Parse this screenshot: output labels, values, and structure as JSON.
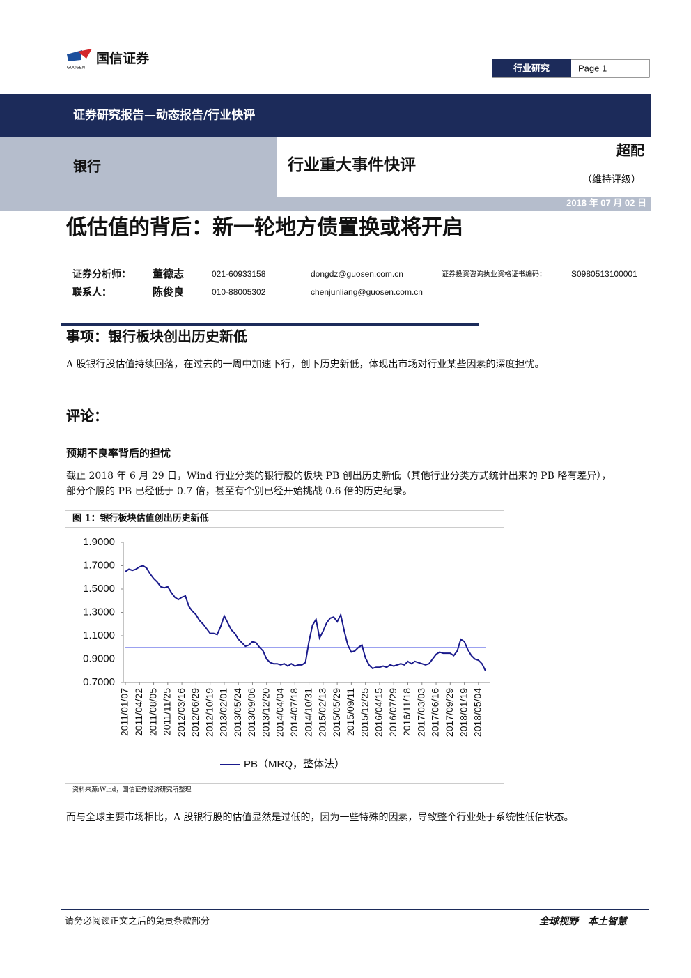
{
  "header": {
    "logo_text": "国信证券",
    "logo_sub": "GUOSEN",
    "section": "行业研究",
    "page": "Page 1"
  },
  "banner": "证券研究报告—动态报告/行业快评",
  "industry": "银行",
  "report_type": "行业重大事件快评",
  "rating": "超配",
  "rating_note": "（维持评级）",
  "date": "2018 年 07 月 02 日",
  "title": "低估值的背后：新一轮地方债置换或将开启",
  "analysts": [
    {
      "role": "证券分析师：",
      "name": "董德志",
      "phone": "021-60933158",
      "email": "dongdz@guosen.com.cn",
      "cert_label": "证券投资咨询执业资格证书编码：",
      "cert": "S0980513100001"
    },
    {
      "role": "联系人：",
      "name": "陈俊良",
      "phone": "010-88005302",
      "email": "chenjunliang@guosen.com.cn"
    }
  ],
  "event": {
    "heading": "事项：银行板块创出历史新低",
    "text": "A 股银行股估值持续回落，在过去的一周中加速下行，创下历史新低，体现出市场对行业某些因素的深度担忧。"
  },
  "comment": {
    "heading": "评论：",
    "subheading": "预期不良率背后的担忧",
    "lines": [
      "截止 2018 年 6 月 29 日，Wind 行业分类的银行股的板块 PB 创出历史新低（其他行业分类方式统计出来的 PB 略有差异），",
      "部分个股的 PB 已经低于 0.7 倍，甚至有个别已经开始挑战 0.6 倍的历史纪录。"
    ],
    "after": "而与全球主要市场相比，A 股银行股的估值显然是过低的，因为一些特殊的因素，导致整个行业处于系统性低估状态。"
  },
  "footer": {
    "left": "请务必阅读正文之后的免责条款部分",
    "right": "全球视野　本土智慧"
  },
  "chart_data": {
    "type": "line",
    "title": "图 1：银行板块估值创出历史新低",
    "source": "资料来源:Wind，国信证券经济研究所整理",
    "categories": [
      "2011/01/07",
      null,
      null,
      null,
      "2011/04/22",
      null,
      null,
      null,
      "2011/08/05",
      null,
      null,
      null,
      "2011/11/25",
      null,
      null,
      null,
      "2012/03/16",
      null,
      null,
      null,
      "2012/06/29",
      null,
      null,
      null,
      "2012/10/19",
      null,
      null,
      null,
      "2013/02/01",
      null,
      null,
      null,
      "2013/05/24",
      null,
      null,
      null,
      "2013/09/06",
      null,
      null,
      null,
      "2013/12/20",
      null,
      null,
      null,
      "2014/04/04",
      null,
      null,
      null,
      "2014/07/18",
      null,
      null,
      null,
      "2014/10/31",
      null,
      null,
      null,
      "2015/02/13",
      null,
      null,
      null,
      "2015/05/29",
      null,
      null,
      null,
      "2015/09/11",
      null,
      null,
      null,
      "2015/12/25",
      null,
      null,
      null,
      "2016/04/15",
      null,
      null,
      null,
      "2016/07/29",
      null,
      null,
      null,
      "2016/11/18",
      null,
      null,
      null,
      "2017/03/03",
      null,
      null,
      null,
      "2017/06/16",
      null,
      null,
      null,
      "2017/09/29",
      null,
      null,
      null,
      "2018/01/19",
      null,
      null,
      null,
      "2018/05/04",
      null,
      null
    ],
    "series": [
      {
        "name": "PB（MRQ，整体法）",
        "color": "#1a1a8c",
        "values": [
          1.65,
          1.67,
          1.66,
          1.67,
          1.69,
          1.7,
          1.68,
          1.63,
          1.59,
          1.56,
          1.52,
          1.51,
          1.52,
          1.47,
          1.43,
          1.41,
          1.43,
          1.44,
          1.35,
          1.31,
          1.28,
          1.23,
          1.2,
          1.16,
          1.12,
          1.12,
          1.11,
          1.18,
          1.27,
          1.21,
          1.15,
          1.12,
          1.07,
          1.04,
          1.01,
          1.02,
          1.05,
          1.04,
          1.0,
          0.97,
          0.9,
          0.87,
          0.86,
          0.86,
          0.85,
          0.86,
          0.84,
          0.86,
          0.84,
          0.85,
          0.85,
          0.87,
          1.05,
          1.19,
          1.24,
          1.08,
          1.14,
          1.21,
          1.25,
          1.26,
          1.22,
          1.28,
          1.14,
          1.02,
          0.96,
          0.97,
          1.0,
          1.02,
          0.91,
          0.85,
          0.82,
          0.83,
          0.83,
          0.84,
          0.83,
          0.85,
          0.84,
          0.85,
          0.86,
          0.85,
          0.88,
          0.86,
          0.88,
          0.87,
          0.86,
          0.85,
          0.86,
          0.9,
          0.94,
          0.96,
          0.95,
          0.95,
          0.95,
          0.93,
          0.97,
          1.07,
          1.05,
          0.98,
          0.93,
          0.9,
          0.89,
          0.86,
          0.8
        ]
      }
    ],
    "reference_line": {
      "value": 1,
      "color": "#9ba1f0"
    },
    "ylim": [
      0.7,
      1.9
    ],
    "yticks": [
      {
        "value": 0.7,
        "label": "0.7000"
      },
      {
        "value": 0.9,
        "label": "0.9000"
      },
      {
        "value": 1.1,
        "label": "1.1000"
      },
      {
        "value": 1.3,
        "label": "1.3000"
      },
      {
        "value": 1.5,
        "label": "1.5000"
      },
      {
        "value": 1.7,
        "label": "1.7000"
      },
      {
        "value": 1.9,
        "label": "1.9000"
      }
    ],
    "grid": false
  }
}
